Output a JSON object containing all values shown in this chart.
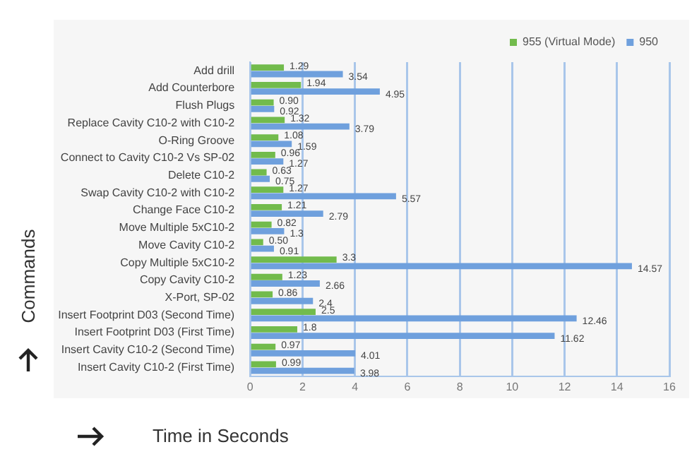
{
  "chart_data": {
    "type": "bar",
    "orientation": "horizontal",
    "xlabel": "Time in Seconds",
    "ylabel": "Commands",
    "categories": [
      "Add drill",
      "Add Counterbore",
      "Flush Plugs",
      "Replace Cavity C10-2 with C10-2",
      "O-Ring Groove",
      "Connect to Cavity C10-2 Vs SP-02",
      "Delete C10-2",
      "Swap Cavity C10-2 with C10-2",
      "Change Face C10-2",
      "Move Multiple 5xC10-2",
      "Move Cavity C10-2",
      "Copy Multiple 5xC10-2",
      "Copy Cavity C10-2",
      "X-Port, SP-02",
      "Insert Footprint D03 (Second Time)",
      "Insert Footprint D03 (First Time)",
      "Insert Cavity C10-2 (Second Time)",
      "Insert Cavity C10-2 (First Time)"
    ],
    "series": [
      {
        "name": "955 (Virtual Mode)",
        "color": "#72bb4c",
        "values": [
          1.29,
          1.94,
          0.9,
          1.32,
          1.08,
          0.96,
          0.63,
          1.27,
          1.21,
          0.82,
          0.5,
          3.3,
          1.23,
          0.86,
          2.5,
          1.8,
          0.97,
          0.99
        ],
        "value_labels": [
          "1.29",
          "1.94",
          "0.90",
          "1.32",
          "1.08",
          "0.96",
          "0.63",
          "1.27",
          "1.21",
          "0.82",
          "0.50",
          "3.3",
          "1.23",
          "0.86",
          "2.5",
          "1.8",
          "0.97",
          "0.99"
        ]
      },
      {
        "name": "950",
        "color": "#6fa0dd",
        "values": [
          3.54,
          4.95,
          0.92,
          3.79,
          1.59,
          1.27,
          0.75,
          5.57,
          2.79,
          1.3,
          0.91,
          14.57,
          2.66,
          2.4,
          12.46,
          11.62,
          4.01,
          3.98
        ],
        "value_labels": [
          "3.54",
          "4.95",
          "0.92",
          "3.79",
          "1.59",
          "1.27",
          "0.75",
          "5.57",
          "2.79",
          "1.3",
          "0.91",
          "14.57",
          "2.66",
          "2.4",
          "12.46",
          "11.62",
          "4.01",
          "3.98"
        ]
      }
    ],
    "xlim": [
      0,
      16
    ],
    "xticks": [
      0,
      2,
      4,
      6,
      8,
      10,
      12,
      14,
      16
    ],
    "grid": "x",
    "legend": "top right"
  }
}
